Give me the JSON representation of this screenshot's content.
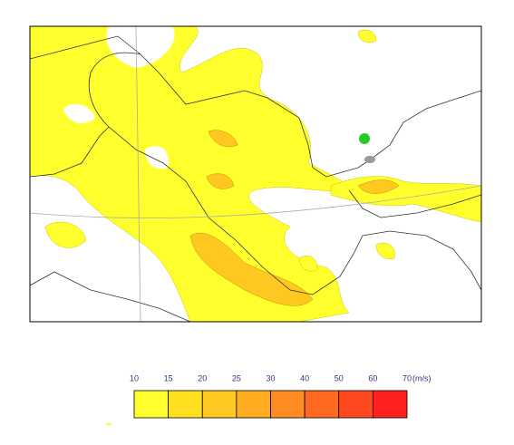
{
  "legend": {
    "ticks": [
      "10",
      "15",
      "20",
      "25",
      "30",
      "40",
      "50",
      "60",
      "70"
    ],
    "unit": "(m/s)",
    "colors": [
      "#ffff2e",
      "#ffe020",
      "#ffc820",
      "#ffac20",
      "#ff8c20",
      "#ff6a20",
      "#ff4a20",
      "#ff2020"
    ]
  }
}
